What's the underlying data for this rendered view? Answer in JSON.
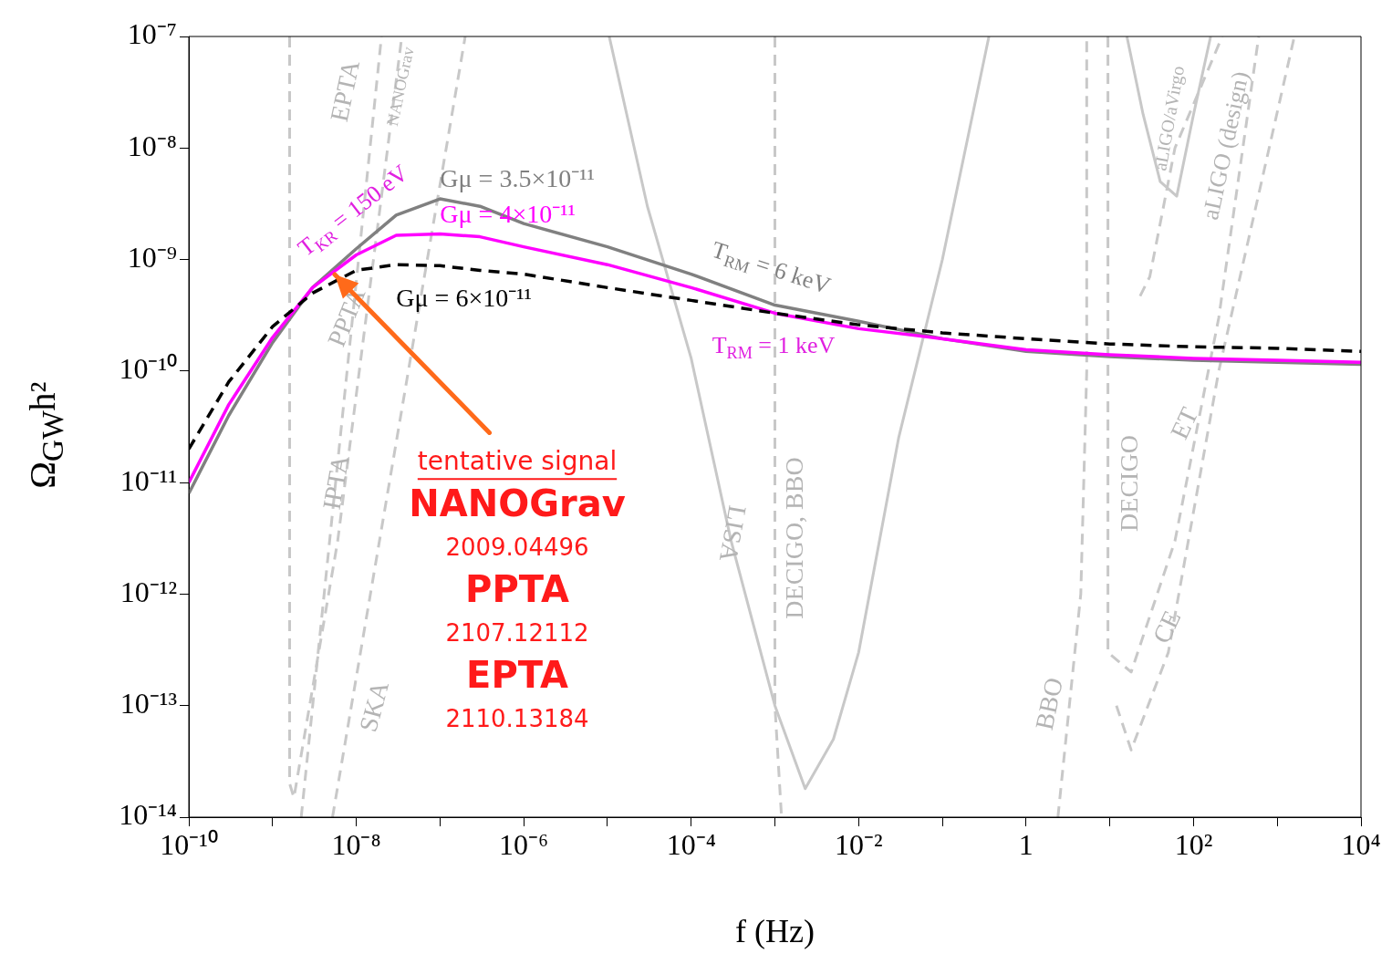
{
  "chart_data": {
    "type": "line",
    "xlabel": "f (Hz)",
    "ylabel": "Ω$_{GW}$h²",
    "log": "xy",
    "xlim": [
      1e-10,
      10000
    ],
    "ylim": [
      1e-14,
      1e-07
    ],
    "xticks": [
      {
        "value": 1e-10,
        "label": "10⁻¹⁰"
      },
      {
        "value": 1e-09,
        "label": null
      },
      {
        "value": 1e-08,
        "label": "10⁻⁸"
      },
      {
        "value": 1e-07,
        "label": null
      },
      {
        "value": 1e-06,
        "label": "10⁻⁶"
      },
      {
        "value": 1e-05,
        "label": null
      },
      {
        "value": 0.0001,
        "label": "10⁻⁴"
      },
      {
        "value": 0.001,
        "label": null
      },
      {
        "value": 0.01,
        "label": "10⁻²"
      },
      {
        "value": 0.1,
        "label": null
      },
      1,
      {
        "value": 10,
        "label": null
      },
      {
        "value": 100,
        "label": "10²"
      },
      {
        "value": 1000,
        "label": null
      },
      {
        "value": 10000,
        "label": "10⁴"
      }
    ],
    "yticks": [
      {
        "value": 1e-14,
        "label": "10⁻¹⁴"
      },
      {
        "value": 1e-13,
        "label": "10⁻¹³"
      },
      {
        "value": 1e-12,
        "label": "10⁻¹²"
      },
      {
        "value": 1e-11,
        "label": "10⁻¹¹"
      },
      {
        "value": 1e-10,
        "label": "10⁻¹⁰"
      },
      {
        "value": 1e-09,
        "label": "10⁻⁹"
      },
      {
        "value": 1e-08,
        "label": "10⁻⁸"
      },
      {
        "value": 1e-07,
        "label": "10⁻⁷"
      }
    ],
    "series": [
      {
        "line_style": "dashed",
        "color": "#c8c8c8",
        "x": [
          1.6e-09,
          1.6e-09,
          1.8e-09,
          6e-09,
          3.5e-08
        ],
        "values": [
          1e-07,
          2e-14,
          1.5e-14,
          3e-12,
          1e-07
        ]
      },
      {
        "line_style": "dashed",
        "color": "#c8c8c8",
        "x": [
          2.2e-09,
          2e-08
        ],
        "values": [
          1e-14,
          1e-07
        ]
      },
      {
        "line_style": "dashed",
        "color": "#c8c8c8",
        "x": [
          5.2e-09,
          2e-07
        ],
        "values": [
          1e-14,
          1e-07
        ]
      },
      {
        "line_style": "dashed",
        "color": "#c8c8c8",
        "x": [
          0.001,
          0.001,
          0.0012
        ],
        "values": [
          1e-07,
          1e-13,
          1e-14
        ]
      },
      {
        "line_style": "solid",
        "color": "#c8c8c8",
        "x": [
          1.05e-05,
          3e-05,
          0.0001,
          0.0003,
          0.001,
          0.0023,
          0.005,
          0.01,
          0.03,
          0.1,
          0.36
        ],
        "values": [
          1e-07,
          3e-09,
          1.3e-10,
          3e-12,
          1e-13,
          1.8e-14,
          5e-14,
          3e-13,
          2.5e-11,
          1e-09,
          1e-07
        ]
      },
      {
        "line_style": "dashed",
        "color": "#c8c8c8",
        "x": [
          2.4,
          4.5,
          5.3,
          5.3
        ],
        "values": [
          1e-14,
          1e-12,
          1e-10,
          1e-07
        ]
      },
      {
        "line_style": "dashed",
        "color": "#c8c8c8",
        "x": [
          9.5,
          9.5,
          18,
          60,
          200,
          600
        ],
        "values": [
          1e-07,
          3e-13,
          2e-13,
          3e-12,
          3e-10,
          1e-07
        ]
      },
      {
        "line_style": "dashed",
        "color": "#c8c8c8",
        "x": [
          12,
          18,
          50,
          200,
          1600
        ],
        "values": [
          1e-13,
          4e-14,
          3e-13,
          1e-10,
          1e-07
        ]
      },
      {
        "line_style": "dashed",
        "color": "#c8c8c8",
        "x": [
          23,
          30,
          60,
          220
        ],
        "values": [
          4.7e-10,
          7e-10,
          1e-08,
          1e-07
        ]
      },
      {
        "line_style": "solid",
        "color": "#c8c8c8",
        "x": [
          16,
          25,
          40,
          63,
          100,
          160
        ],
        "values": [
          1e-07,
          2e-08,
          5e-09,
          3.7e-09,
          2e-08,
          1e-07
        ]
      },
      {
        "name": "Gμ = 3.5×10⁻¹¹",
        "line_style": "solid",
        "color": "#808080",
        "x": [
          1e-10,
          3e-10,
          1e-09,
          3e-09,
          1e-08,
          3e-08,
          1e-07,
          3e-07,
          1e-06,
          1e-05,
          0.0001,
          0.001,
          0.01,
          0.1,
          1,
          10,
          100,
          1000,
          10000
        ],
        "values": [
          8e-12,
          4e-11,
          1.8e-10,
          5.6e-10,
          1.25e-09,
          2.5e-09,
          3.5e-09,
          3e-09,
          2.1e-09,
          1.3e-09,
          7.4e-10,
          3.9e-10,
          2.8e-10,
          1.95e-10,
          1.5e-10,
          1.35e-10,
          1.25e-10,
          1.2e-10,
          1.15e-10
        ]
      },
      {
        "name": "Gμ = 4×10⁻¹¹",
        "line_style": "solid",
        "color": "#ff00ff",
        "x": [
          1e-10,
          3e-10,
          1e-09,
          3e-09,
          1e-08,
          3e-08,
          1e-07,
          3e-07,
          1e-06,
          1e-05,
          0.0001,
          0.001,
          0.01,
          0.1,
          1,
          10,
          100,
          1000,
          10000
        ],
        "values": [
          1e-11,
          5e-11,
          2e-10,
          5.6e-10,
          1.1e-09,
          1.65e-09,
          1.7e-09,
          1.6e-09,
          1.3e-09,
          9e-10,
          5.6e-10,
          3.3e-10,
          2.4e-10,
          1.95e-10,
          1.55e-10,
          1.4e-10,
          1.3e-10,
          1.25e-10,
          1.2e-10
        ]
      },
      {
        "name": "Gμ = 6×10⁻¹¹",
        "line_style": "dashed",
        "color": "#000000",
        "x": [
          1e-10,
          3e-10,
          1e-09,
          3e-09,
          1e-08,
          3e-08,
          1e-07,
          3e-07,
          1e-06,
          1e-05,
          0.0001,
          0.001,
          0.01,
          0.1,
          1,
          10,
          100,
          1000,
          10000
        ],
        "values": [
          2e-11,
          8e-11,
          2.5e-10,
          5e-10,
          8e-10,
          9e-10,
          8.8e-10,
          8e-10,
          7.4e-10,
          5.6e-10,
          4.3e-10,
          3.3e-10,
          2.6e-10,
          2.2e-10,
          1.95e-10,
          1.75e-10,
          1.65e-10,
          1.6e-10,
          1.5e-10
        ]
      }
    ],
    "annotations": [
      "EPTA",
      "NANOGrav",
      "T$_{KR}$ = 150 eV",
      {
        "text": "PPTA",
        "x": 8e-09,
        "y": 3e-10
      },
      {
        "text": "IPTA",
        "x": 6e-09,
        "y": 1e-11
      },
      "SKA",
      {
        "text": "LISA",
        "x": 0.0003,
        "y": 3.5e-12
      },
      "DECIGO, BBO",
      "BBO",
      "DECIGO",
      "ET",
      {
        "text": "CE",
        "x": 50,
        "y": 5e-13
      },
      "aLIGO/aVirgo",
      "aLIGO (design)",
      "T$_{RM}$ = 6 keV",
      "T$_{RM}$ = 1 keV",
      {
        "text": "tentative signal",
        "x": 5.6e-09,
        "y": 7.4e-10
      },
      "NANOGrav",
      "2009.04496",
      "PPTA",
      "2107.12112",
      "EPTA",
      "2110.13184"
    ]
  }
}
